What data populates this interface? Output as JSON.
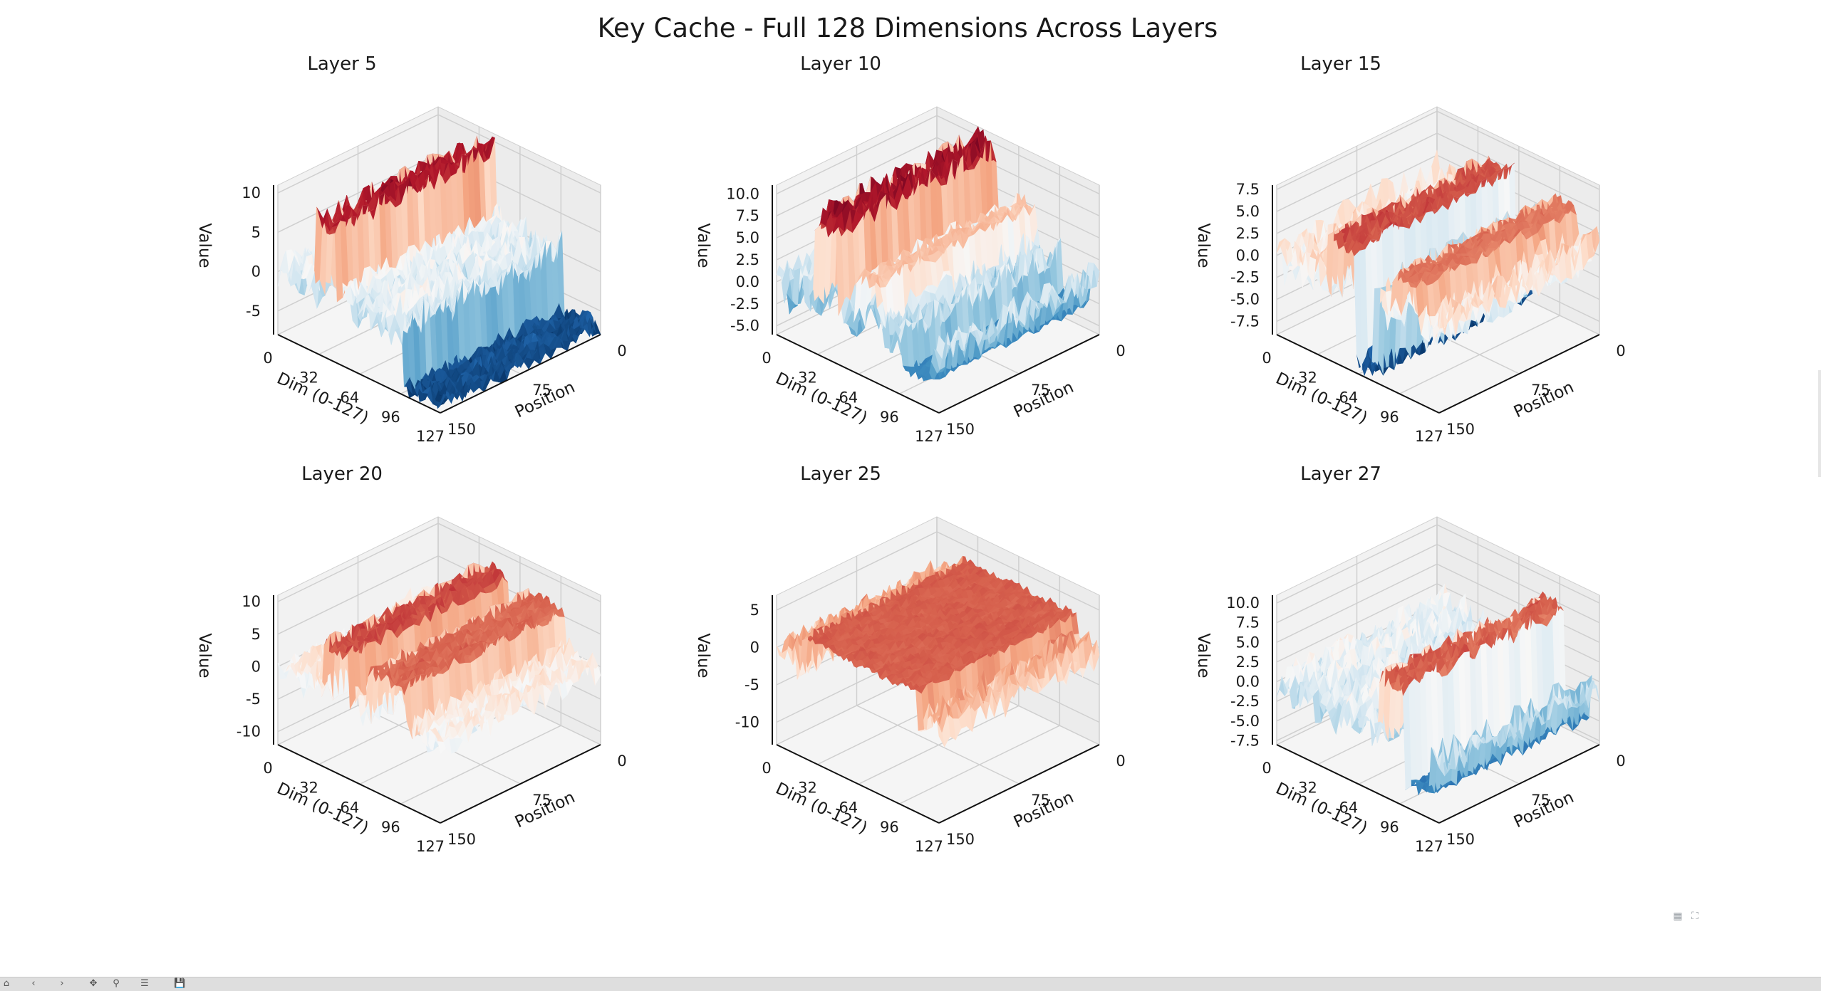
{
  "figure": {
    "suptitle": "Key Cache - Full 128 Dimensions Across Layers"
  },
  "colormap": {
    "name": "RdBu_r",
    "low": "#08306b",
    "mid": "#f7f7f7",
    "high": "#67000d"
  },
  "chart_data": [
    {
      "type": "surface3d",
      "title": "Layer 5",
      "xlabel": "Dim (0-127)",
      "ylabel": "Position",
      "zlabel": "Value",
      "x_ticks": [
        "0",
        "32",
        "64",
        "96",
        "127"
      ],
      "y_ticks": [
        "0",
        "75",
        "150"
      ],
      "z_ticks": [
        "10",
        "5",
        "0",
        "-5"
      ],
      "xlim": [
        0,
        127
      ],
      "ylim": [
        0,
        150
      ],
      "zlim": [
        -8,
        11
      ],
      "features": [
        {
          "dim_from": 30,
          "dim_to": 46,
          "value": 9
        },
        {
          "dim_from": 98,
          "dim_to": 127,
          "value": -7
        }
      ]
    },
    {
      "type": "surface3d",
      "title": "Layer 10",
      "xlabel": "Dim (0-127)",
      "ylabel": "Position",
      "zlabel": "Value",
      "x_ticks": [
        "0",
        "32",
        "64",
        "96",
        "127"
      ],
      "y_ticks": [
        "0",
        "75",
        "150"
      ],
      "z_ticks": [
        "10.0",
        "7.5",
        "5.0",
        "2.5",
        "0.0",
        "-2.5",
        "-5.0"
      ],
      "xlim": [
        0,
        127
      ],
      "ylim": [
        0,
        150
      ],
      "zlim": [
        -6,
        11
      ],
      "features": [
        {
          "dim_from": 30,
          "dim_to": 48,
          "value": 9.5
        },
        {
          "dim_from": 62,
          "dim_to": 78,
          "value": 5
        },
        {
          "dim_from": 98,
          "dim_to": 120,
          "value": -3
        }
      ]
    },
    {
      "type": "surface3d",
      "title": "Layer 15",
      "xlabel": "Dim (0-127)",
      "ylabel": "Position",
      "zlabel": "Value",
      "x_ticks": [
        "0",
        "32",
        "64",
        "96",
        "127"
      ],
      "y_ticks": [
        "0",
        "75",
        "150"
      ],
      "z_ticks": [
        "7.5",
        "5.0",
        "2.5",
        "0.0",
        "-2.5",
        "-5.0",
        "-7.5"
      ],
      "xlim": [
        0,
        127
      ],
      "ylim": [
        0,
        150
      ],
      "zlim": [
        -9,
        8
      ],
      "features": [
        {
          "dim_from": 40,
          "dim_to": 70,
          "value": 5
        },
        {
          "dim_from": 62,
          "dim_to": 76,
          "value": -8
        },
        {
          "dim_from": 90,
          "dim_to": 110,
          "value": 4
        }
      ]
    },
    {
      "type": "surface3d",
      "title": "Layer 20",
      "xlabel": "Dim (0-127)",
      "ylabel": "Position",
      "zlabel": "Value",
      "x_ticks": [
        "0",
        "32",
        "64",
        "96",
        "127"
      ],
      "y_ticks": [
        "0",
        "75",
        "150"
      ],
      "z_ticks": [
        "10",
        "5",
        "0",
        "-5",
        "-10"
      ],
      "xlim": [
        0,
        127
      ],
      "ylim": [
        0,
        150
      ],
      "zlim": [
        -12,
        11
      ],
      "features": [
        {
          "dim_from": 36,
          "dim_to": 56,
          "value": 7
        },
        {
          "dim_from": 70,
          "dim_to": 100,
          "value": 6
        }
      ]
    },
    {
      "type": "surface3d",
      "title": "Layer 25",
      "xlabel": "Dim (0-127)",
      "ylabel": "Position",
      "zlabel": "Value",
      "x_ticks": [
        "0",
        "32",
        "64",
        "96",
        "127"
      ],
      "y_ticks": [
        "0",
        "75",
        "150"
      ],
      "z_ticks": [
        "5",
        "0",
        "-5",
        "-10"
      ],
      "xlim": [
        0,
        127
      ],
      "ylim": [
        0,
        150
      ],
      "zlim": [
        -13,
        7
      ],
      "features": [
        {
          "dim_from": 60,
          "dim_to": 80,
          "value": -10
        },
        {
          "dim_from": 20,
          "dim_to": 110,
          "value": 3
        }
      ]
    },
    {
      "type": "surface3d",
      "title": "Layer 27",
      "xlabel": "Dim (0-127)",
      "ylabel": "Position",
      "zlabel": "Value",
      "x_ticks": [
        "0",
        "32",
        "64",
        "96",
        "127"
      ],
      "y_ticks": [
        "0",
        "75",
        "150"
      ],
      "z_ticks": [
        "10.0",
        "7.5",
        "5.0",
        "2.5",
        "0.0",
        "-2.5",
        "-5.0",
        "-7.5"
      ],
      "xlim": [
        0,
        127
      ],
      "ylim": [
        0,
        150
      ],
      "zlim": [
        -8,
        11
      ],
      "features": [
        {
          "dim_from": 80,
          "dim_to": 100,
          "value": 7
        },
        {
          "dim_from": 100,
          "dim_to": 120,
          "value": -5
        }
      ]
    }
  ],
  "toolbar": {
    "icons": [
      "back-icon",
      "forward-icon",
      "pan-icon",
      "zoom-icon",
      "configure-icon",
      "save-icon"
    ],
    "figure_icons": [
      "grid-icon",
      "expand-icon"
    ]
  }
}
